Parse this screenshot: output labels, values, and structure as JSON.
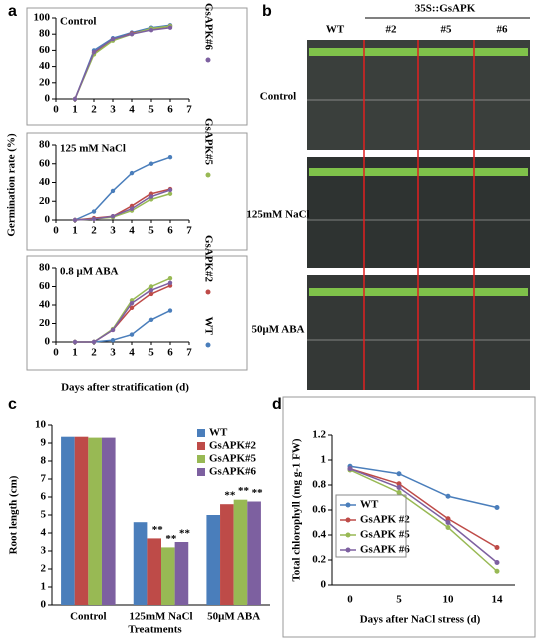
{
  "panel_labels": [
    "a",
    "b",
    "c",
    "d"
  ],
  "photo": {
    "header": "35S::GsAPK",
    "columns": [
      "WT",
      "#2",
      "#5",
      "#6"
    ],
    "rows": [
      "Control",
      "125mM NaCl",
      "50μM ABA"
    ]
  },
  "chart_data": [
    {
      "type": "line",
      "xlabel": "Days after stratification (d)",
      "ylabel": "Germination rate (%)",
      "x": [
        1,
        2,
        3,
        4,
        5,
        6
      ],
      "xlim": [
        0,
        7
      ],
      "xticks": [
        0,
        1,
        2,
        3,
        4,
        5,
        6,
        7
      ],
      "legend": [
        {
          "name": "WT",
          "color": "#4a7ebb"
        },
        {
          "name": "GsAPK#2",
          "color": "#be4b48"
        },
        {
          "name": "GsAPK#5",
          "color": "#98b954"
        },
        {
          "name": "GsAPK#6",
          "color": "#7d60a0"
        }
      ],
      "subplots": [
        {
          "title": "Control",
          "ylim": [
            0,
            100
          ],
          "yticks": [
            0,
            20,
            40,
            60,
            80,
            100
          ],
          "series": [
            {
              "values": [
                0,
                60,
                75,
                82,
                88,
                91
              ]
            },
            {
              "values": [
                0,
                57,
                73,
                81,
                86,
                90
              ]
            },
            {
              "values": [
                0,
                55,
                72,
                80,
                87,
                90
              ]
            },
            {
              "values": [
                0,
                58,
                74,
                80,
                85,
                88
              ]
            }
          ]
        },
        {
          "title": "125 mM NaCl",
          "ylim": [
            0,
            80
          ],
          "yticks": [
            0,
            20,
            40,
            60,
            80
          ],
          "series": [
            {
              "values": [
                0,
                9,
                31,
                50,
                60,
                67
              ]
            },
            {
              "values": [
                0,
                2,
                4,
                15,
                28,
                33
              ]
            },
            {
              "values": [
                0,
                1,
                3,
                10,
                22,
                28
              ]
            },
            {
              "values": [
                0,
                1,
                4,
                12,
                25,
                32
              ]
            }
          ]
        },
        {
          "title": "0.8 μM ABA",
          "ylim": [
            0,
            80
          ],
          "yticks": [
            0,
            20,
            40,
            60,
            80
          ],
          "series": [
            {
              "values": [
                0,
                0,
                2,
                8,
                24,
                34
              ]
            },
            {
              "values": [
                0,
                0,
                13,
                37,
                52,
                61
              ]
            },
            {
              "values": [
                0,
                0,
                14,
                45,
                60,
                69
              ]
            },
            {
              "values": [
                0,
                0,
                13,
                42,
                56,
                64
              ]
            }
          ]
        }
      ]
    },
    {
      "type": "bar",
      "xlabel": "Treatments",
      "ylabel": "Root length (cm)",
      "categories": [
        "Control",
        "125mM NaCl",
        "50μM ABA"
      ],
      "ylim": [
        0,
        10
      ],
      "yticks": [
        0,
        1,
        2,
        3,
        4,
        5,
        6,
        7,
        8,
        9,
        10
      ],
      "series": [
        {
          "name": "WT",
          "color": "#4a7ebb",
          "values": [
            9.35,
            4.6,
            5.0
          ],
          "marks": [
            null,
            null,
            null
          ]
        },
        {
          "name": "GsAPK#2",
          "color": "#be4b48",
          "values": [
            9.35,
            3.7,
            5.6
          ],
          "marks": [
            null,
            "**",
            "**"
          ]
        },
        {
          "name": "GsAPK#5",
          "color": "#98b954",
          "values": [
            9.3,
            3.2,
            5.85
          ],
          "marks": [
            null,
            "**",
            "**"
          ]
        },
        {
          "name": "GsAPK#6",
          "color": "#7d60a0",
          "values": [
            9.3,
            3.5,
            5.75
          ],
          "marks": [
            null,
            "**",
            "**"
          ]
        }
      ]
    },
    {
      "type": "line",
      "xlabel": "Days after NaCl stress (d)",
      "ylabel": "Total chlorophyll (mg g-1 FW)",
      "categories": [
        "0",
        "5",
        "10",
        "14"
      ],
      "ylim": [
        0,
        1.2
      ],
      "yticks": [
        0,
        0.2,
        0.4,
        0.6,
        0.8,
        1,
        1.2
      ],
      "series": [
        {
          "name": "WT",
          "color": "#4a7ebb",
          "values": [
            0.95,
            0.89,
            0.71,
            0.62
          ]
        },
        {
          "name": "GsAPK #2",
          "color": "#be4b48",
          "values": [
            0.93,
            0.81,
            0.53,
            0.3
          ]
        },
        {
          "name": "GsAPK #5",
          "color": "#98b954",
          "values": [
            0.92,
            0.74,
            0.46,
            0.11
          ]
        },
        {
          "name": "GsAPK #6",
          "color": "#7d60a0",
          "values": [
            0.93,
            0.78,
            0.5,
            0.18
          ]
        }
      ]
    }
  ]
}
